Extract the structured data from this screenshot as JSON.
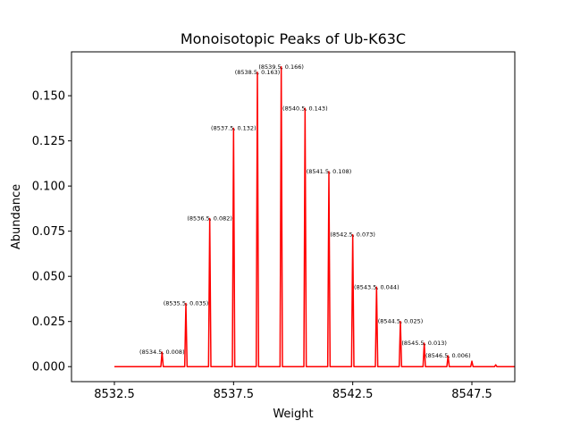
{
  "chart_data": {
    "type": "line",
    "title": "Monoisotopic Peaks of Ub-K63C",
    "xlabel": "Weight",
    "ylabel": "Abundance",
    "xlim": [
      8530.7,
      8549.3
    ],
    "ylim": [
      -0.0083,
      0.1743
    ],
    "x_ticks": [
      8532.5,
      8537.5,
      8542.5,
      8547.5
    ],
    "x_tick_labels": [
      "8532.5",
      "8537.5",
      "8542.5",
      "8547.5"
    ],
    "y_ticks": [
      0.0,
      0.025,
      0.05,
      0.075,
      0.1,
      0.125,
      0.15
    ],
    "y_tick_labels": [
      "0.000",
      "0.025",
      "0.050",
      "0.075",
      "0.100",
      "0.125",
      "0.150"
    ],
    "series_color": "#ff0000",
    "baseline_start": 8532.5,
    "baseline_end": 8549.3,
    "peaks": [
      {
        "x": 8534.5,
        "y": 0.008,
        "label": "(8534.5, 0.008)"
      },
      {
        "x": 8535.5,
        "y": 0.035,
        "label": "(8535.5, 0.035)"
      },
      {
        "x": 8536.5,
        "y": 0.082,
        "label": "(8536.5, 0.082)"
      },
      {
        "x": 8537.5,
        "y": 0.132,
        "label": "(8537.5, 0.132)"
      },
      {
        "x": 8538.5,
        "y": 0.163,
        "label": "(8538.5, 0.163)"
      },
      {
        "x": 8539.5,
        "y": 0.166,
        "label": "(8539.5, 0.166)"
      },
      {
        "x": 8540.5,
        "y": 0.143,
        "label": "(8540.5, 0.143)"
      },
      {
        "x": 8541.5,
        "y": 0.108,
        "label": "(8541.5, 0.108)"
      },
      {
        "x": 8542.5,
        "y": 0.073,
        "label": "(8542.5, 0.073)"
      },
      {
        "x": 8543.5,
        "y": 0.044,
        "label": "(8543.5, 0.044)"
      },
      {
        "x": 8544.5,
        "y": 0.025,
        "label": "(8544.5, 0.025)"
      },
      {
        "x": 8545.5,
        "y": 0.013,
        "label": "(8545.5, 0.013)"
      },
      {
        "x": 8546.5,
        "y": 0.006,
        "label": "(8546.5, 0.006)"
      },
      {
        "x": 8547.5,
        "y": 0.003,
        "label": ""
      },
      {
        "x": 8548.5,
        "y": 0.001,
        "label": ""
      }
    ],
    "grid": false,
    "legend": "none"
  }
}
